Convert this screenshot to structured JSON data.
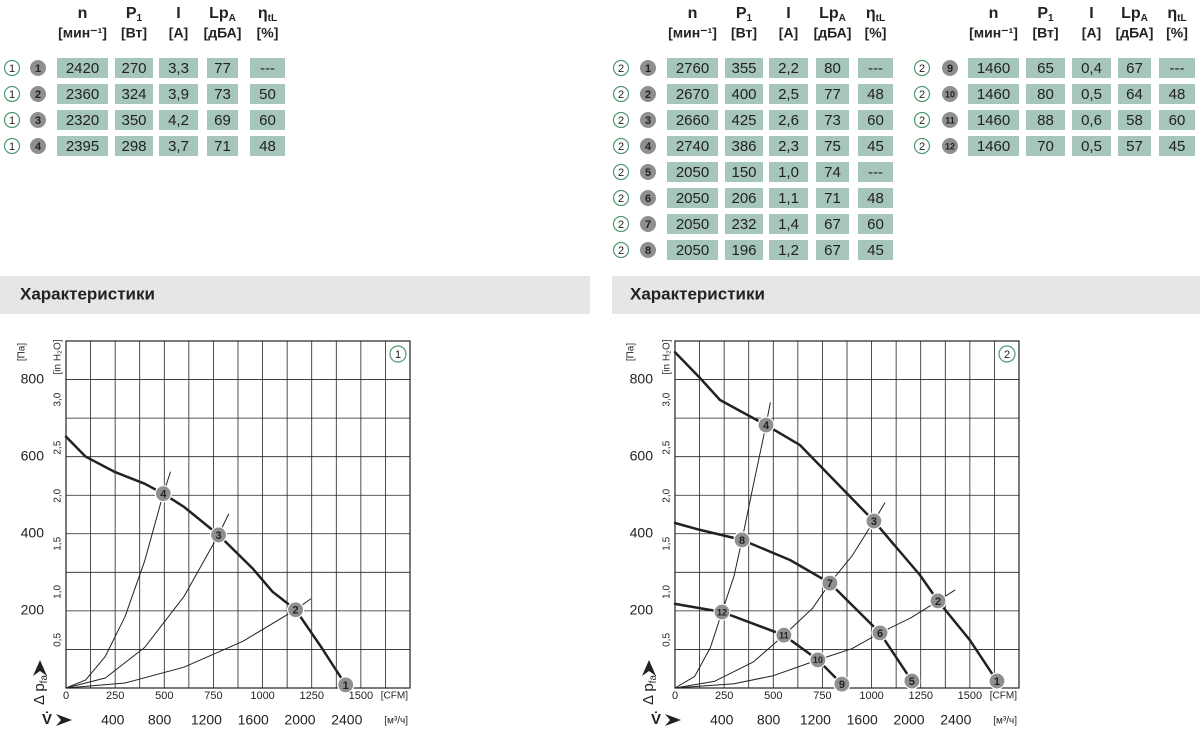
{
  "tables": [
    {
      "headers": [
        {
          "symbol": "n",
          "unit": "[мин⁻¹]"
        },
        {
          "symbol": "P",
          "sub": "1",
          "unit": "[Вт]"
        },
        {
          "symbol": "I",
          "unit": "[А]"
        },
        {
          "symbol": "Lp",
          "sub": "A",
          "unit": "[дБА]"
        },
        {
          "symbol": "η",
          "sub": "tL",
          "unit": "[%]"
        }
      ],
      "rows": [
        {
          "curve": "1",
          "point": "1",
          "cells": [
            2420,
            270,
            "3,3",
            77,
            "---"
          ]
        },
        {
          "curve": "1",
          "point": "2",
          "cells": [
            2360,
            324,
            "3,9",
            73,
            50
          ]
        },
        {
          "curve": "1",
          "point": "3",
          "cells": [
            2320,
            350,
            "4,2",
            69,
            60
          ]
        },
        {
          "curve": "1",
          "point": "4",
          "cells": [
            2395,
            298,
            "3,7",
            71,
            48
          ]
        }
      ]
    },
    {
      "headers": [
        {
          "symbol": "n",
          "unit": "[мин⁻¹]"
        },
        {
          "symbol": "P",
          "sub": "1",
          "unit": "[Вт]"
        },
        {
          "symbol": "I",
          "unit": "[А]"
        },
        {
          "symbol": "Lp",
          "sub": "A",
          "unit": "[дБА]"
        },
        {
          "symbol": "η",
          "sub": "tL",
          "unit": "[%]"
        }
      ],
      "rows": [
        {
          "curve": "2",
          "point": "1",
          "cells": [
            2760,
            355,
            "2,2",
            80,
            "---"
          ]
        },
        {
          "curve": "2",
          "point": "2",
          "cells": [
            2670,
            400,
            "2,5",
            77,
            48
          ]
        },
        {
          "curve": "2",
          "point": "3",
          "cells": [
            2660,
            425,
            "2,6",
            73,
            60
          ]
        },
        {
          "curve": "2",
          "point": "4",
          "cells": [
            2740,
            386,
            "2,3",
            75,
            45
          ]
        },
        {
          "curve": "2",
          "point": "5",
          "cells": [
            2050,
            150,
            "1,0",
            74,
            "---"
          ]
        },
        {
          "curve": "2",
          "point": "6",
          "cells": [
            2050,
            206,
            "1,1",
            71,
            48
          ]
        },
        {
          "curve": "2",
          "point": "7",
          "cells": [
            2050,
            232,
            "1,4",
            67,
            60
          ]
        },
        {
          "curve": "2",
          "point": "8",
          "cells": [
            2050,
            196,
            "1,2",
            67,
            45
          ]
        }
      ]
    },
    {
      "headers": [
        {
          "symbol": "n",
          "unit": "[мин⁻¹]"
        },
        {
          "symbol": "P",
          "sub": "1",
          "unit": "[Вт]"
        },
        {
          "symbol": "I",
          "unit": "[А]"
        },
        {
          "symbol": "Lp",
          "sub": "A",
          "unit": "[дБА]"
        },
        {
          "symbol": "η",
          "sub": "tL",
          "unit": "[%]"
        }
      ],
      "rows": [
        {
          "curve": "2",
          "point": "9",
          "cells": [
            1460,
            65,
            "0,4",
            67,
            "---"
          ]
        },
        {
          "curve": "2",
          "point": "10",
          "cells": [
            1460,
            80,
            "0,5",
            64,
            48
          ]
        },
        {
          "curve": "2",
          "point": "11",
          "cells": [
            1460,
            88,
            "0,6",
            58,
            60
          ]
        },
        {
          "curve": "2",
          "point": "12",
          "cells": [
            1460,
            70,
            "0,5",
            57,
            45
          ]
        }
      ]
    }
  ],
  "sections": [
    "Характеристики",
    "Характеристики"
  ],
  "chart_data": [
    {
      "type": "line",
      "badge": "1",
      "grid": true,
      "xlim": [
        0,
        1750
      ],
      "xticks": [
        0,
        250,
        500,
        750,
        1000,
        1250,
        1500
      ],
      "xlabel": "[CFM]",
      "xgrid": [
        0,
        125,
        250,
        375,
        500,
        625,
        750,
        875,
        1000,
        1125,
        1250,
        1375,
        1500,
        1625,
        1750
      ],
      "x2lim": [
        0,
        2940
      ],
      "x2ticks": [
        400,
        800,
        1200,
        1600,
        2000,
        2400
      ],
      "x2label": "[м³/ч]",
      "ylim": [
        0,
        900
      ],
      "yticks": [
        200,
        400,
        600,
        800
      ],
      "ylabel": "[Па]",
      "ygrid": [
        0,
        100,
        200,
        300,
        400,
        500,
        600,
        700,
        800,
        900
      ],
      "y2lim": [
        0,
        3.61
      ],
      "y2ticks": [
        {
          "value": 0.5,
          "label": "0,5"
        },
        {
          "value": 1.0,
          "label": "1,0"
        },
        {
          "value": 1.5,
          "label": "1,5"
        },
        {
          "value": 2.0,
          "label": "2,0"
        },
        {
          "value": 2.5,
          "label": "2,5"
        },
        {
          "value": 3.0,
          "label": "3,0"
        }
      ],
      "y2label": "[in H₂O]",
      "x_symbol": "V̇",
      "y_symbol": "Δ p",
      "y_sub": "fa",
      "series": [
        {
          "color": "#222222",
          "line_width": 2.5,
          "x": [
            0,
            100,
            250,
            400,
            495,
            600,
            776,
            950,
            1050,
            1168,
            1300,
            1423
          ],
          "values": [
            652,
            600,
            560,
            530,
            504,
            470,
            397,
            310,
            250,
            203,
            105,
            8
          ]
        },
        {
          "color": "#222222",
          "line_width": 1,
          "x": [
            0,
            100,
            200,
            300,
            400,
            495,
            531
          ],
          "values": [
            0,
            21,
            82,
            185,
            329,
            504,
            560
          ]
        },
        {
          "color": "#222222",
          "line_width": 1,
          "x": [
            0,
            200,
            400,
            600,
            776,
            827
          ],
          "values": [
            0,
            26,
            105,
            237,
            397,
            451
          ]
        },
        {
          "color": "#222222",
          "line_width": 1,
          "x": [
            0,
            300,
            600,
            900,
            1168,
            1245
          ],
          "values": [
            0,
            13,
            54,
            121,
            203,
            231
          ]
        }
      ],
      "points": [
        {
          "label": "1",
          "x": 1423,
          "y": 8
        },
        {
          "label": "2",
          "x": 1168,
          "y": 203
        },
        {
          "label": "3",
          "x": 776,
          "y": 397
        },
        {
          "label": "4",
          "x": 495,
          "y": 504
        }
      ]
    },
    {
      "type": "line",
      "badge": "2",
      "grid": true,
      "xlim": [
        0,
        1750
      ],
      "xticks": [
        0,
        250,
        500,
        750,
        1000,
        1250,
        1500
      ],
      "xlabel": "[CFM]",
      "xgrid": [
        0,
        125,
        250,
        375,
        500,
        625,
        750,
        875,
        1000,
        1125,
        1250,
        1375,
        1500,
        1625,
        1750
      ],
      "x2lim": [
        0,
        2940
      ],
      "x2ticks": [
        400,
        800,
        1200,
        1600,
        2000,
        2400
      ],
      "x2label": "[м³/ч]",
      "ylim": [
        0,
        900
      ],
      "yticks": [
        200,
        400,
        600,
        800
      ],
      "ylabel": "[Па]",
      "ygrid": [
        0,
        100,
        200,
        300,
        400,
        500,
        600,
        700,
        800,
        900
      ],
      "y2lim": [
        0,
        3.61
      ],
      "y2ticks": [
        {
          "value": 0.5,
          "label": "0,5"
        },
        {
          "value": 1.0,
          "label": "1,0"
        },
        {
          "value": 1.5,
          "label": "1,5"
        },
        {
          "value": 2.0,
          "label": "2,0"
        },
        {
          "value": 2.5,
          "label": "2,5"
        },
        {
          "value": 3.0,
          "label": "3,0"
        }
      ],
      "y2label": "[in H₂O]",
      "x_symbol": "V̇",
      "y_symbol": "Δ p",
      "y_sub": "fa",
      "series": [
        {
          "color": "#222222",
          "line_width": 2.5,
          "x": [
            0,
            127,
            229,
            463,
            636,
            1012,
            1246,
            1338,
            1500,
            1638
          ],
          "values": [
            871,
            804,
            747,
            682,
            630,
            433,
            293,
            226,
            124,
            18
          ]
        },
        {
          "color": "#222222",
          "line_width": 2.5,
          "x": [
            0,
            127,
            341,
            585,
            788,
            1043,
            1205
          ],
          "values": [
            428,
            410,
            384,
            332,
            272,
            143,
            18
          ]
        },
        {
          "color": "#222222",
          "line_width": 2.5,
          "x": [
            0,
            239,
            554,
            727,
            849
          ],
          "values": [
            218,
            197,
            137,
            73,
            10
          ]
        },
        {
          "color": "#222222",
          "line_width": 1,
          "x": [
            0,
            100,
            180,
            239,
            300,
            341,
            400,
            463,
            485
          ],
          "values": [
            0,
            30,
            105,
            197,
            290,
            384,
            530,
            682,
            740
          ]
        },
        {
          "color": "#222222",
          "line_width": 1,
          "x": [
            0,
            200,
            400,
            554,
            700,
            788,
            900,
            1012,
            1068
          ],
          "values": [
            0,
            17,
            68,
            137,
            207,
            272,
            342,
            433,
            480
          ]
        },
        {
          "color": "#222222",
          "line_width": 1,
          "x": [
            0,
            300,
            500,
            727,
            900,
            1043,
            1200,
            1338,
            1424
          ],
          "values": [
            0,
            11,
            32,
            73,
            102,
            143,
            182,
            226,
            254
          ]
        }
      ],
      "points": [
        {
          "label": "1",
          "x": 1638,
          "y": 18
        },
        {
          "label": "2",
          "x": 1338,
          "y": 226
        },
        {
          "label": "3",
          "x": 1012,
          "y": 433
        },
        {
          "label": "4",
          "x": 463,
          "y": 682
        },
        {
          "label": "5",
          "x": 1205,
          "y": 18
        },
        {
          "label": "6",
          "x": 1043,
          "y": 143
        },
        {
          "label": "7",
          "x": 788,
          "y": 272
        },
        {
          "label": "8",
          "x": 341,
          "y": 384
        },
        {
          "label": "9",
          "x": 849,
          "y": 10
        },
        {
          "label": "10",
          "x": 727,
          "y": 73
        },
        {
          "label": "11",
          "x": 554,
          "y": 137
        },
        {
          "label": "12",
          "x": 239,
          "y": 197
        }
      ]
    }
  ]
}
